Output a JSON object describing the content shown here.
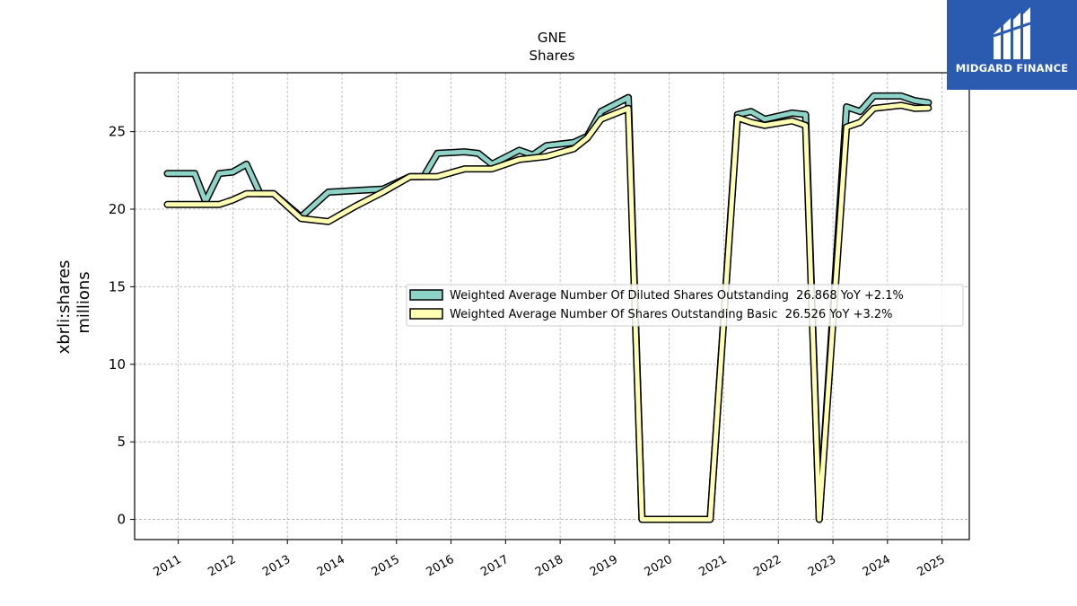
{
  "brand": {
    "name": "MIDGARD FINANCE",
    "colors": {
      "background": "#2a5bb0",
      "text": "#ffffff"
    },
    "icon": "stylized-m-logo-icon"
  },
  "chart_data": {
    "type": "line",
    "title": "GNE",
    "subtitle": "Shares",
    "xlabel": "",
    "ylabel": "xbrli:shares",
    "ylabel2": "millions",
    "xlim": [
      2010.2,
      2025.5
    ],
    "ylim": [
      -1.3,
      28.8
    ],
    "xticks": [
      2011,
      2012,
      2013,
      2014,
      2015,
      2016,
      2017,
      2018,
      2019,
      2020,
      2021,
      2022,
      2023,
      2024,
      2025
    ],
    "xtick_labels": [
      "2011",
      "2012",
      "2013",
      "2014",
      "2015",
      "2016",
      "2017",
      "2018",
      "2019",
      "2020",
      "2021",
      "2022",
      "2023",
      "2024",
      "2025"
    ],
    "yticks": [
      0,
      5,
      10,
      15,
      20,
      25
    ],
    "ytick_labels": [
      "0",
      "5",
      "10",
      "15",
      "20",
      "25"
    ],
    "grid": true,
    "legend_position": "center-right",
    "series": [
      {
        "name": "Weighted Average Number Of Diluted Shares Outstanding  26.868 YoY +2.1%",
        "color": "#8dd3c7",
        "x": [
          2010.8,
          2011.0,
          2011.3,
          2011.5,
          2011.75,
          2012.0,
          2012.25,
          2012.5,
          2012.75,
          2013.25,
          2013.75,
          2014.25,
          2014.75,
          2015.25,
          2015.5,
          2015.75,
          2016.25,
          2016.5,
          2016.75,
          2017.25,
          2017.5,
          2017.75,
          2018.25,
          2018.5,
          2018.75,
          2019.25,
          2019.5,
          2019.75,
          2020.0,
          2020.25,
          2020.5,
          2020.75,
          2021.25,
          2021.5,
          2021.75,
          2022.25,
          2022.5,
          2022.75,
          2023.25,
          2023.5,
          2023.75,
          2024.25,
          2024.5,
          2024.75
        ],
        "y": [
          22.3,
          22.3,
          22.3,
          20.5,
          22.3,
          22.4,
          22.9,
          21.0,
          21.0,
          19.5,
          21.1,
          21.2,
          21.3,
          22.1,
          22.1,
          23.6,
          23.7,
          23.6,
          22.9,
          23.8,
          23.5,
          24.1,
          24.3,
          24.7,
          26.3,
          27.2,
          0.0,
          0.0,
          0.0,
          0.0,
          0.0,
          0.0,
          26.1,
          26.3,
          25.8,
          26.2,
          26.1,
          0.0,
          26.6,
          26.3,
          27.3,
          27.3,
          27.0,
          26.868
        ]
      },
      {
        "name": "Weighted Average Number Of Shares Outstanding Basic  26.526 YoY +3.2%",
        "color": "#ffffb3",
        "x": [
          2010.8,
          2011.0,
          2011.3,
          2011.5,
          2011.75,
          2012.0,
          2012.25,
          2012.5,
          2012.75,
          2013.25,
          2013.75,
          2014.25,
          2014.75,
          2015.25,
          2015.5,
          2015.75,
          2016.25,
          2016.5,
          2016.75,
          2017.25,
          2017.5,
          2017.75,
          2018.25,
          2018.5,
          2018.75,
          2019.25,
          2019.5,
          2019.75,
          2020.0,
          2020.25,
          2020.5,
          2020.75,
          2021.25,
          2021.5,
          2021.75,
          2022.25,
          2022.5,
          2022.75,
          2023.25,
          2023.5,
          2023.75,
          2024.25,
          2024.5,
          2024.75
        ],
        "y": [
          20.3,
          20.3,
          20.3,
          20.3,
          20.3,
          20.6,
          21.0,
          21.0,
          21.0,
          19.4,
          19.2,
          20.2,
          21.1,
          22.1,
          22.1,
          22.1,
          22.6,
          22.6,
          22.6,
          23.2,
          23.3,
          23.4,
          23.9,
          24.6,
          25.8,
          26.5,
          0.0,
          0.0,
          0.0,
          0.0,
          0.0,
          0.0,
          25.9,
          25.6,
          25.4,
          25.7,
          25.4,
          0.0,
          25.3,
          25.6,
          26.5,
          26.7,
          26.5,
          26.526
        ]
      }
    ]
  }
}
